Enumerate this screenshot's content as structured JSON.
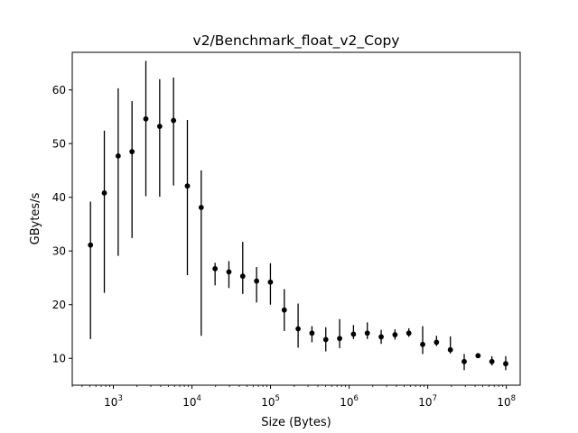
{
  "chart_data": {
    "type": "scatter",
    "title": "v2/Benchmark_float_v2_Copy",
    "xlabel": "Size (Bytes)",
    "ylabel": "GBytes/s",
    "xscale": "log",
    "xlim": [
      300,
      150000000
    ],
    "ylim": [
      5,
      67
    ],
    "grid": false,
    "legend": "none",
    "marker_color": "#000000",
    "x_ticks": [
      {
        "value": 1000,
        "base": "10",
        "exp": "3"
      },
      {
        "value": 10000,
        "base": "10",
        "exp": "4"
      },
      {
        "value": 100000,
        "base": "10",
        "exp": "5"
      },
      {
        "value": 1000000,
        "base": "10",
        "exp": "6"
      },
      {
        "value": 10000000,
        "base": "10",
        "exp": "7"
      },
      {
        "value": 100000000,
        "base": "10",
        "exp": "8"
      }
    ],
    "y_ticks": [
      10,
      20,
      30,
      40,
      50,
      60
    ],
    "series": [
      {
        "points": [
          {
            "x": 512,
            "y": 31.1,
            "lo": 13.6,
            "hi": 39.2
          },
          {
            "x": 768,
            "y": 40.8,
            "lo": 22.2,
            "hi": 52.4
          },
          {
            "x": 1152,
            "y": 47.7,
            "lo": 29.1,
            "hi": 60.3
          },
          {
            "x": 1728,
            "y": 48.5,
            "lo": 32.4,
            "hi": 57.9
          },
          {
            "x": 2592,
            "y": 54.6,
            "lo": 40.2,
            "hi": 65.4
          },
          {
            "x": 3888,
            "y": 53.2,
            "lo": 40.1,
            "hi": 62.0
          },
          {
            "x": 5832,
            "y": 54.3,
            "lo": 42.2,
            "hi": 62.3
          },
          {
            "x": 8748,
            "y": 42.1,
            "lo": 25.5,
            "hi": 54.4
          },
          {
            "x": 13122,
            "y": 38.1,
            "lo": 14.2,
            "hi": 45.0
          },
          {
            "x": 19683,
            "y": 26.7,
            "lo": 23.6,
            "hi": 27.8
          },
          {
            "x": 29525,
            "y": 26.1,
            "lo": 23.1,
            "hi": 28.1
          },
          {
            "x": 44287,
            "y": 25.3,
            "lo": 22.0,
            "hi": 31.7
          },
          {
            "x": 66430,
            "y": 24.4,
            "lo": 20.4,
            "hi": 27.0
          },
          {
            "x": 99645,
            "y": 24.2,
            "lo": 20.0,
            "hi": 27.7
          },
          {
            "x": 149468,
            "y": 19.0,
            "lo": 15.1,
            "hi": 22.9
          },
          {
            "x": 224202,
            "y": 15.5,
            "lo": 12.0,
            "hi": 20.2
          },
          {
            "x": 336303,
            "y": 14.7,
            "lo": 13.0,
            "hi": 16.0
          },
          {
            "x": 504455,
            "y": 13.5,
            "lo": 11.3,
            "hi": 15.8
          },
          {
            "x": 756682,
            "y": 13.7,
            "lo": 11.9,
            "hi": 17.3
          },
          {
            "x": 1135023,
            "y": 14.5,
            "lo": 13.6,
            "hi": 16.2
          },
          {
            "x": 1702535,
            "y": 14.7,
            "lo": 13.6,
            "hi": 16.7
          },
          {
            "x": 2553802,
            "y": 14.0,
            "lo": 12.7,
            "hi": 15.3
          },
          {
            "x": 3830703,
            "y": 14.4,
            "lo": 13.5,
            "hi": 15.4
          },
          {
            "x": 5746055,
            "y": 14.7,
            "lo": 14.0,
            "hi": 15.6
          },
          {
            "x": 8619082,
            "y": 12.6,
            "lo": 10.8,
            "hi": 16.0
          },
          {
            "x": 12928623,
            "y": 13.0,
            "lo": 12.3,
            "hi": 14.2
          },
          {
            "x": 19392935,
            "y": 11.6,
            "lo": 10.9,
            "hi": 14.1
          },
          {
            "x": 29089402,
            "y": 9.4,
            "lo": 7.8,
            "hi": 10.8
          },
          {
            "x": 43634103,
            "y": 10.5,
            "lo": 10.3,
            "hi": 10.8
          },
          {
            "x": 65451154,
            "y": 9.4,
            "lo": 8.7,
            "hi": 10.4
          },
          {
            "x": 98176731,
            "y": 9.0,
            "lo": 7.8,
            "hi": 10.4
          }
        ]
      }
    ]
  }
}
